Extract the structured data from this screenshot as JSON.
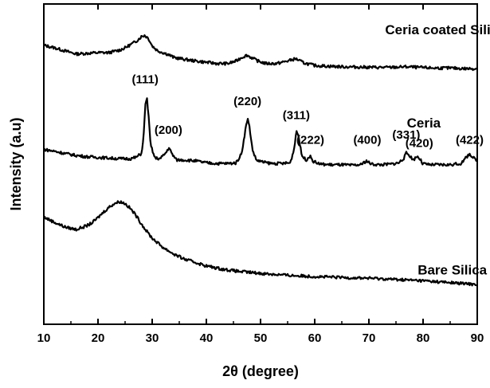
{
  "chart_data": {
    "type": "line",
    "title": "",
    "xlabel": "2θ (degree)",
    "ylabel": "Intensity (a.u)",
    "xlim": [
      10,
      90
    ],
    "xticks": [
      10,
      20,
      30,
      40,
      50,
      60,
      70,
      80,
      90
    ],
    "ylim": [
      0,
      100
    ],
    "y_ticks_labeled": false,
    "grid": false,
    "legend": "none",
    "series": [
      {
        "name": "Ceria coated Silica",
        "color": "#000000",
        "x": [
          10,
          12,
          14,
          16,
          18,
          20,
          22,
          24,
          25,
          26,
          27,
          28,
          28.6,
          29.3,
          30,
          31,
          32,
          33,
          34,
          36,
          38,
          40,
          42,
          44,
          45.5,
          46.5,
          47.5,
          48.5,
          49.5,
          51,
          53,
          55,
          56.5,
          58,
          60,
          62,
          65,
          68,
          71,
          74,
          77,
          79,
          82,
          85,
          88,
          90
        ],
        "y": [
          87.1,
          86.3,
          85.3,
          84.4,
          84.6,
          84.8,
          84.8,
          85.6,
          86.3,
          87.3,
          88.3,
          89.8,
          90.2,
          89.3,
          86.9,
          85.4,
          84.8,
          84.2,
          83.3,
          82.7,
          82.2,
          81.8,
          81.4,
          81.4,
          82.2,
          83.3,
          84.0,
          83.1,
          82.2,
          81.4,
          81.4,
          82.2,
          82.9,
          81.6,
          80.8,
          80.6,
          80.4,
          80.3,
          80.2,
          80.2,
          80.4,
          80.2,
          80.0,
          80.0,
          79.8,
          79.8
        ],
        "ylim": [
          0,
          100
        ]
      },
      {
        "name": "Ceria",
        "color": "#000000",
        "x": [
          10,
          12,
          14,
          16,
          18,
          20,
          22,
          24,
          26,
          27,
          28,
          28.4,
          28.7,
          29,
          29.3,
          29.7,
          30.5,
          31.5,
          32.6,
          33.1,
          33.6,
          34.5,
          36,
          38,
          40,
          42,
          44,
          45.5,
          46.5,
          47.2,
          47.6,
          48,
          48.5,
          49.2,
          50.5,
          52,
          54,
          55.5,
          56.2,
          56.6,
          57,
          57.6,
          58.4,
          59.1,
          59.8,
          61,
          63,
          65,
          67,
          68.5,
          69.5,
          70.5,
          72,
          74,
          75.5,
          76.5,
          76.9,
          77.4,
          78.2,
          78.9,
          79.4,
          79.9,
          81,
          83,
          85,
          87,
          88.1,
          88.6,
          89.2,
          90
        ],
        "y": [
          54.6,
          54.0,
          53.3,
          52.7,
          52.3,
          52.1,
          51.9,
          51.7,
          51.7,
          52.1,
          53.3,
          57.9,
          67.8,
          71.2,
          65.8,
          56.0,
          51.9,
          51.7,
          53.7,
          55.2,
          53.3,
          51.3,
          51.3,
          51.0,
          50.4,
          50.2,
          50.2,
          50.4,
          53.3,
          60.6,
          64.4,
          61.2,
          54.6,
          51.3,
          50.6,
          50.2,
          50.2,
          50.4,
          54.8,
          60.4,
          59.0,
          52.7,
          51.3,
          52.5,
          50.8,
          50.0,
          49.8,
          49.8,
          49.6,
          49.8,
          51.0,
          50.0,
          49.8,
          50.0,
          50.4,
          51.9,
          53.5,
          52.9,
          51.3,
          52.5,
          51.7,
          50.2,
          49.8,
          49.8,
          49.8,
          50.2,
          52.3,
          53.3,
          52.1,
          50.8
        ],
        "ylim": [
          0,
          100
        ]
      },
      {
        "name": "Bare Silica",
        "color": "#000000",
        "x": [
          10,
          12,
          14,
          16,
          18,
          19,
          20,
          21,
          22,
          23,
          24,
          25,
          26,
          27,
          28,
          29,
          30,
          32,
          34,
          36,
          38,
          40,
          43,
          46,
          50,
          55,
          60,
          65,
          70,
          75,
          80,
          85,
          90
        ],
        "y": [
          33.5,
          31.8,
          30.3,
          29.6,
          30.8,
          31.8,
          33.3,
          35.0,
          36.5,
          37.7,
          38.3,
          37.7,
          36.1,
          34.0,
          31.4,
          29.0,
          26.9,
          24.0,
          21.9,
          20.3,
          19.3,
          18.2,
          17.2,
          16.5,
          15.9,
          15.3,
          14.9,
          14.6,
          14.4,
          14.0,
          13.6,
          13.0,
          12.4
        ],
        "ylim": [
          0,
          100
        ]
      }
    ],
    "series_labels": [
      "Ceria coated Silica",
      "Ceria",
      "Bare Silica"
    ],
    "peak_labels": [
      {
        "text": "(111)",
        "x": 28.7,
        "y": 75.2
      },
      {
        "text": "(200)",
        "x": 33.0,
        "y": 59.5
      },
      {
        "text": "(220)",
        "x": 47.6,
        "y": 68.4
      },
      {
        "text": "(311)",
        "x": 56.6,
        "y": 64.0
      },
      {
        "text": "(222)",
        "x": 59.2,
        "y": 56.4
      },
      {
        "text": "(400)",
        "x": 69.7,
        "y": 56.4
      },
      {
        "text": "(331)",
        "x": 76.9,
        "y": 57.9
      },
      {
        "text": "(420)",
        "x": 79.3,
        "y": 55.4
      },
      {
        "text": "(422)",
        "x": 88.6,
        "y": 56.4
      }
    ]
  }
}
